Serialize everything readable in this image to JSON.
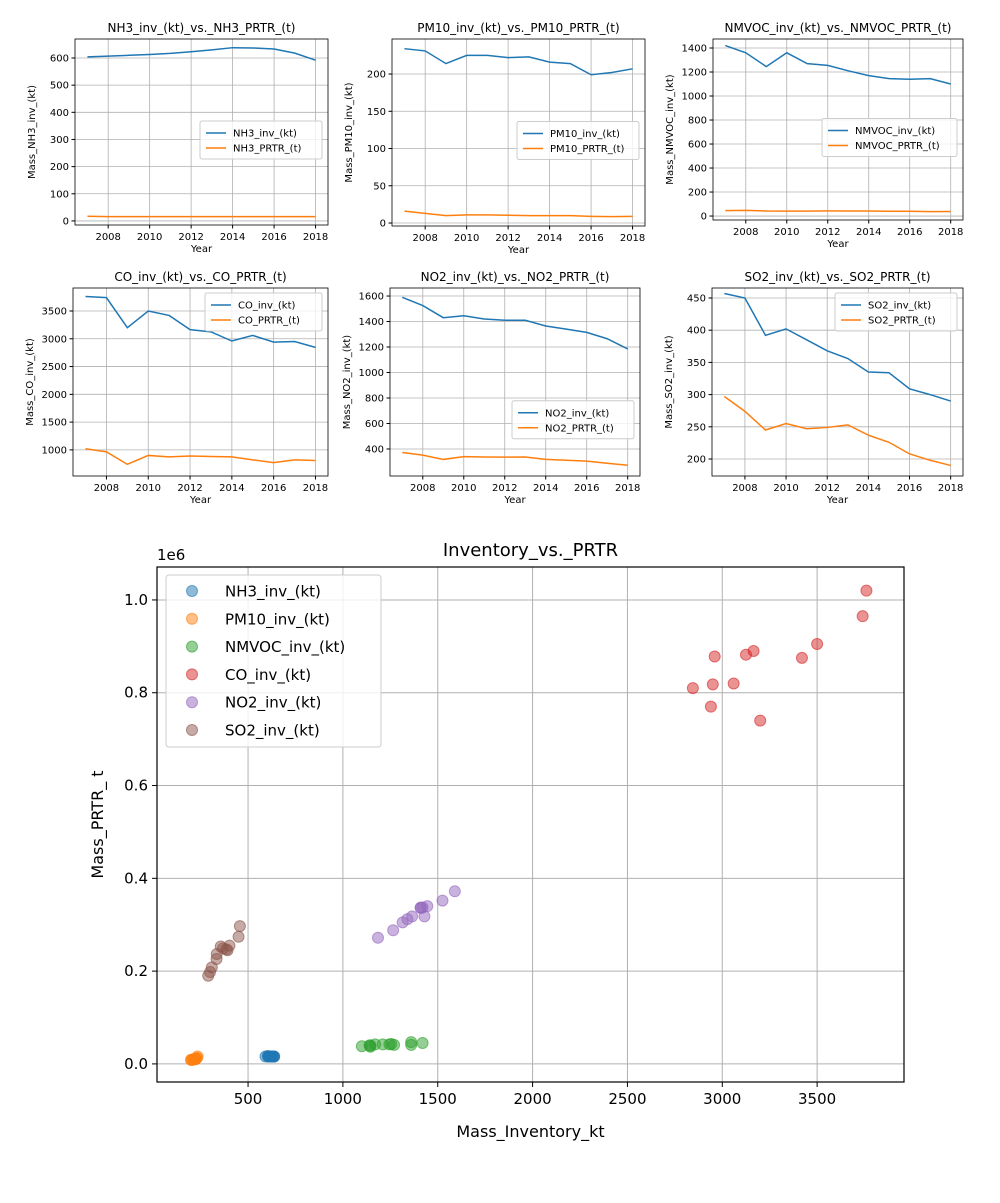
{
  "chart_data": [
    {
      "type": "line",
      "title": "NH3_inv_(kt)_vs._NH3_PRTR_(t)",
      "xlabel": "Year",
      "ylabel": "Mass_NH3_inv_(kt)",
      "x": [
        2007,
        2008,
        2009,
        2010,
        2011,
        2012,
        2013,
        2014,
        2015,
        2016,
        2017,
        2018
      ],
      "xticks": [
        2008,
        2010,
        2012,
        2014,
        2016,
        2018
      ],
      "yticks": [
        0,
        100,
        200,
        300,
        400,
        500,
        600
      ],
      "xlim": [
        2006.4,
        2018.6
      ],
      "ylim": [
        -15,
        670
      ],
      "grid": true,
      "legend": "center-right",
      "series": [
        {
          "name": "NH3_inv_(kt)",
          "color": "#1f77b4",
          "values": [
            604,
            607,
            610,
            613,
            617,
            623,
            630,
            638,
            637,
            633,
            618,
            592
          ]
        },
        {
          "name": "NH3_PRTR_(t)",
          "color": "#ff7f0e",
          "values": [
            17,
            16,
            16,
            16,
            16,
            16,
            16,
            16,
            16,
            16,
            16,
            16
          ]
        }
      ]
    },
    {
      "type": "line",
      "title": "PM10_inv_(kt)_vs._PM10_PRTR_(t)",
      "xlabel": "Year",
      "ylabel": "Mass_PM10_inv_(kt)",
      "x": [
        2007,
        2008,
        2009,
        2010,
        2011,
        2012,
        2013,
        2014,
        2015,
        2016,
        2017,
        2018
      ],
      "xticks": [
        2008,
        2010,
        2012,
        2014,
        2016,
        2018
      ],
      "yticks": [
        0,
        50,
        100,
        150,
        200
      ],
      "xlim": [
        2006.4,
        2018.6
      ],
      "ylim": [
        -4,
        247
      ],
      "grid": true,
      "legend": "center-right",
      "series": [
        {
          "name": "PM10_inv_(kt)",
          "color": "#1f77b4",
          "values": [
            234,
            231,
            214,
            225,
            225,
            222,
            223,
            216,
            214,
            199,
            202,
            207
          ]
        },
        {
          "name": "PM10_PRTR_(t)",
          "color": "#ff7f0e",
          "values": [
            16,
            13,
            10,
            11,
            11,
            10.5,
            10,
            10,
            10,
            9,
            8.5,
            9
          ]
        }
      ]
    },
    {
      "type": "line",
      "title": "NMVOC_inv_(kt)_vs._NMVOC_PRTR_(t)",
      "xlabel": "Year",
      "ylabel": "Mass_NMVOC_inv_(kt)",
      "x": [
        2007,
        2008,
        2009,
        2010,
        2011,
        2012,
        2013,
        2014,
        2015,
        2016,
        2017,
        2018
      ],
      "xticks": [
        2008,
        2010,
        2012,
        2014,
        2016,
        2018
      ],
      "yticks": [
        0,
        200,
        400,
        600,
        800,
        1000,
        1200,
        1400
      ],
      "xlim": [
        2006.4,
        2018.6
      ],
      "ylim": [
        -33,
        1475
      ],
      "grid": true,
      "legend": "center-right",
      "series": [
        {
          "name": "NMVOC_inv_(kt)",
          "color": "#1f77b4",
          "values": [
            1420,
            1360,
            1245,
            1360,
            1270,
            1255,
            1210,
            1170,
            1145,
            1140,
            1145,
            1100
          ]
        },
        {
          "name": "NMVOC_PRTR_(t)",
          "color": "#ff7f0e",
          "values": [
            45,
            47,
            42,
            41,
            41,
            43,
            42,
            42,
            40,
            40,
            37,
            38
          ]
        }
      ]
    },
    {
      "type": "line",
      "title": "CO_inv_(kt)_vs._CO_PRTR_(t)",
      "xlabel": "Year",
      "ylabel": "Mass_CO_inv_(kt)",
      "x": [
        2007,
        2008,
        2009,
        2010,
        2011,
        2012,
        2013,
        2014,
        2015,
        2016,
        2017,
        2018
      ],
      "xticks": [
        2008,
        2010,
        2012,
        2014,
        2016,
        2018
      ],
      "yticks": [
        1000,
        1500,
        2000,
        2500,
        3000,
        3500
      ],
      "xlim": [
        2006.4,
        2018.6
      ],
      "ylim": [
        530,
        3914
      ],
      "grid": true,
      "legend": "upper-right",
      "series": [
        {
          "name": "CO_inv_(kt)",
          "color": "#1f77b4",
          "values": [
            3760,
            3740,
            3200,
            3500,
            3420,
            3165,
            3125,
            2960,
            3060,
            2940,
            2950,
            2845
          ]
        },
        {
          "name": "CO_PRTR_(t)",
          "color": "#ff7f0e",
          "values": [
            1020,
            965,
            740,
            900,
            875,
            890,
            880,
            875,
            820,
            770,
            820,
            810
          ]
        }
      ]
    },
    {
      "type": "line",
      "title": "NO2_inv_(kt)_vs._NO2_PRTR_(t)",
      "xlabel": "Year",
      "ylabel": "Mass_NO2_inv_(kt)",
      "x": [
        2007,
        2008,
        2009,
        2010,
        2011,
        2012,
        2013,
        2014,
        2015,
        2016,
        2017,
        2018
      ],
      "xticks": [
        2008,
        2010,
        2012,
        2014,
        2016,
        2018
      ],
      "yticks": [
        400,
        600,
        800,
        1000,
        1200,
        1400,
        1600
      ],
      "xlim": [
        2006.4,
        2018.6
      ],
      "ylim": [
        188,
        1663
      ],
      "grid": true,
      "legend": "lower-right",
      "series": [
        {
          "name": "NO2_inv_(kt)",
          "color": "#1f77b4",
          "values": [
            1590,
            1525,
            1430,
            1445,
            1420,
            1410,
            1410,
            1365,
            1340,
            1315,
            1265,
            1185
          ]
        },
        {
          "name": "NO2_PRTR_(t)",
          "color": "#ff7f0e",
          "values": [
            372,
            352,
            318,
            340,
            337,
            336,
            337,
            318,
            312,
            305,
            288,
            272
          ]
        }
      ]
    },
    {
      "type": "line",
      "title": "SO2_inv_(kt)_vs._SO2_PRTR_(t)",
      "xlabel": "Year",
      "ylabel": "Mass_SO2_inv_(kt)",
      "x": [
        2007,
        2008,
        2009,
        2010,
        2011,
        2012,
        2013,
        2014,
        2015,
        2016,
        2017,
        2018
      ],
      "xticks": [
        2008,
        2010,
        2012,
        2014,
        2016,
        2018
      ],
      "yticks": [
        200,
        250,
        300,
        350,
        400,
        450
      ],
      "xlim": [
        2006.4,
        2018.6
      ],
      "ylim": [
        173.6,
        465.5
      ],
      "grid": true,
      "legend": "upper-right",
      "series": [
        {
          "name": "SO2_inv_(kt)",
          "color": "#1f77b4",
          "values": [
            457,
            450,
            392,
            402,
            385,
            368,
            356,
            335,
            334,
            309,
            300,
            290
          ]
        },
        {
          "name": "SO2_PRTR_(t)",
          "color": "#ff7f0e",
          "values": [
            297,
            274,
            245,
            255,
            247,
            249,
            253,
            237,
            226,
            208,
            198,
            190
          ]
        }
      ]
    },
    {
      "type": "scatter",
      "title": "Inventory_vs._PRTR",
      "xlabel": "Mass_Inventory_kt",
      "ylabel": "Mass_PRTR_ t",
      "y_offset_label": "1e6",
      "xticks": [
        500,
        1000,
        1500,
        2000,
        2500,
        3000,
        3500
      ],
      "yticks": [
        0.0,
        0.2,
        0.4,
        0.6,
        0.8,
        1.0
      ],
      "ytick_labels": [
        "0.0",
        "0.2",
        "0.4",
        "0.6",
        "0.8",
        "1.0"
      ],
      "xlim": [
        20,
        3958
      ],
      "ylim": [
        -39000,
        1071000
      ],
      "grid": true,
      "legend": "upper-left",
      "alpha": 0.5,
      "series": [
        {
          "name": "NH3_inv_(kt)",
          "color": "#1f77b4",
          "x": [
            604,
            607,
            610,
            613,
            617,
            623,
            630,
            638,
            637,
            633,
            618,
            592
          ],
          "y": [
            17000,
            16000,
            16000,
            16000,
            16000,
            16000,
            16000,
            16000,
            16000,
            16000,
            16000,
            16000
          ]
        },
        {
          "name": "PM10_inv_(kt)",
          "color": "#ff7f0e",
          "x": [
            234,
            231,
            214,
            225,
            225,
            222,
            223,
            216,
            214,
            199,
            202,
            207
          ],
          "y": [
            16000,
            13000,
            10000,
            11000,
            11000,
            10500,
            10000,
            10000,
            10000,
            9000,
            8500,
            9000
          ]
        },
        {
          "name": "NMVOC_inv_(kt)",
          "color": "#2ca02c",
          "x": [
            1420,
            1360,
            1245,
            1360,
            1270,
            1255,
            1210,
            1170,
            1145,
            1140,
            1145,
            1100
          ],
          "y": [
            45000,
            47000,
            42000,
            41000,
            41000,
            43000,
            42000,
            42000,
            40000,
            40000,
            37000,
            38000
          ]
        },
        {
          "name": "CO_inv_(kt)",
          "color": "#d62728",
          "x": [
            3760,
            3740,
            3200,
            3500,
            3420,
            3165,
            3125,
            2960,
            3060,
            2940,
            2950,
            2845
          ],
          "y": [
            1020000,
            965000,
            740000,
            905000,
            875000,
            890000,
            882000,
            878000,
            820000,
            770000,
            818000,
            810000
          ]
        },
        {
          "name": "NO2_inv_(kt)",
          "color": "#9467bd",
          "x": [
            1590,
            1525,
            1430,
            1445,
            1420,
            1410,
            1410,
            1365,
            1340,
            1315,
            1265,
            1185
          ],
          "y": [
            372000,
            352000,
            318000,
            340000,
            337000,
            336000,
            337000,
            318000,
            312000,
            305000,
            288000,
            272000
          ]
        },
        {
          "name": "SO2_inv_(kt)",
          "color": "#8c564b",
          "x": [
            457,
            450,
            392,
            402,
            385,
            368,
            356,
            335,
            334,
            309,
            300,
            290
          ],
          "y": [
            297000,
            274000,
            245000,
            255000,
            247000,
            249000,
            253000,
            237000,
            226000,
            208000,
            198000,
            190000
          ]
        }
      ]
    }
  ]
}
